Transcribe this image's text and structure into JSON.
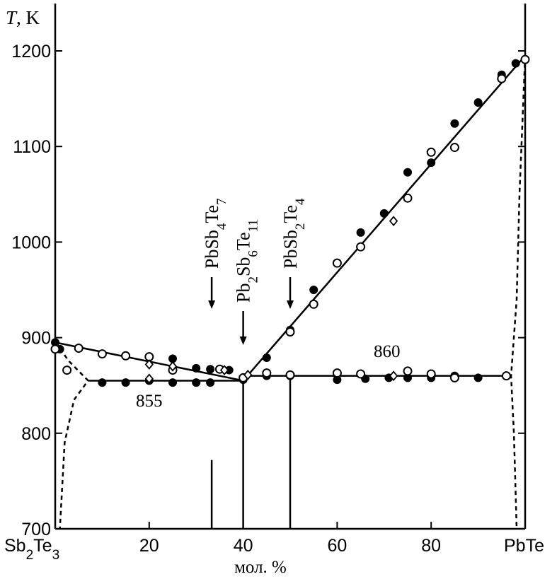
{
  "chart_data": {
    "type": "scatter",
    "title": "",
    "ylabel": "T, K",
    "xlabel": "мол. %",
    "xlim": [
      0,
      100
    ],
    "ylim": [
      700,
      1250
    ],
    "x_ticks": [
      20,
      40,
      60,
      80
    ],
    "y_ticks": [
      700,
      800,
      900,
      1000,
      1100,
      1200
    ],
    "x_end_labels": {
      "left": "Sb2Te3",
      "right": "PbTe"
    },
    "grid": false,
    "liquidus": [
      {
        "name": "",
        "points": [
          [
            0,
            895
          ],
          [
            40,
            855
          ]
        ]
      },
      {
        "name": "",
        "points": [
          [
            40,
            855
          ],
          [
            100,
            1195
          ]
        ]
      }
    ],
    "eutectic_lines": [
      {
        "label": "855",
        "x_range": [
          7,
          40
        ],
        "y": 855
      },
      {
        "label": "860",
        "x_range": [
          40,
          96
        ],
        "y": 860
      }
    ],
    "solidus_dashed": [
      {
        "points": [
          [
            0,
            895
          ],
          [
            3,
            875
          ],
          [
            7,
            855
          ],
          [
            4,
            835
          ],
          [
            2,
            790
          ],
          [
            1,
            700
          ]
        ]
      },
      {
        "points": [
          [
            100,
            1195
          ],
          [
            98.8,
            1050
          ],
          [
            98.2,
            940
          ],
          [
            97,
            860
          ],
          [
            97.6,
            800
          ],
          [
            98.2,
            700
          ]
        ]
      }
    ],
    "compounds": [
      {
        "formula": "PbSb4Te7",
        "x": 33.3,
        "line_bottom": 700,
        "line_top": 772
      },
      {
        "formula": "Pb2Sb6Te11",
        "x": 40,
        "line_bottom": 700,
        "line_top": 855
      },
      {
        "formula": "PbSb2Te4",
        "x": 50,
        "line_bottom": 700,
        "line_top": 860
      }
    ],
    "series": [
      {
        "marker": "filled-circle",
        "points": [
          [
            0,
            895
          ],
          [
            1,
            888
          ],
          [
            10,
            853
          ],
          [
            15,
            853
          ],
          [
            20,
            855
          ],
          [
            25,
            878
          ],
          [
            25,
            853
          ],
          [
            30,
            868
          ],
          [
            30,
            853
          ],
          [
            33,
            853
          ],
          [
            33,
            867
          ],
          [
            37,
            866
          ],
          [
            40,
            856
          ],
          [
            45,
            879
          ],
          [
            45,
            860
          ],
          [
            50,
            908
          ],
          [
            50,
            860
          ],
          [
            55,
            950
          ],
          [
            60,
            856
          ],
          [
            65,
            1010
          ],
          [
            66,
            857
          ],
          [
            70,
            1030
          ],
          [
            71,
            858
          ],
          [
            75,
            1073
          ],
          [
            75,
            858
          ],
          [
            80,
            1083
          ],
          [
            80,
            858
          ],
          [
            85,
            1124
          ],
          [
            85,
            860
          ],
          [
            90,
            1146
          ],
          [
            90,
            858
          ],
          [
            95,
            1175
          ],
          [
            98,
            1187
          ]
        ]
      },
      {
        "marker": "open-circle",
        "points": [
          [
            0,
            888
          ],
          [
            2.5,
            866
          ],
          [
            5,
            889
          ],
          [
            10,
            883
          ],
          [
            15,
            881
          ],
          [
            20,
            880
          ],
          [
            25,
            866
          ],
          [
            35,
            867
          ],
          [
            40,
            858
          ],
          [
            45,
            863
          ],
          [
            50,
            906
          ],
          [
            50,
            861
          ],
          [
            55,
            935
          ],
          [
            60,
            978
          ],
          [
            60,
            863
          ],
          [
            65,
            995
          ],
          [
            65,
            862
          ],
          [
            75,
            1046
          ],
          [
            75,
            865
          ],
          [
            80,
            1094
          ],
          [
            80,
            862
          ],
          [
            85,
            1099
          ],
          [
            85,
            858
          ],
          [
            95,
            1171
          ],
          [
            96,
            860
          ],
          [
            100,
            1191
          ]
        ]
      },
      {
        "marker": "open-diamond",
        "points": [
          [
            20,
            872
          ],
          [
            20,
            857
          ],
          [
            25,
            870
          ],
          [
            36,
            866
          ],
          [
            41,
            861
          ],
          [
            72,
            1022
          ],
          [
            72,
            860
          ]
        ]
      }
    ]
  }
}
